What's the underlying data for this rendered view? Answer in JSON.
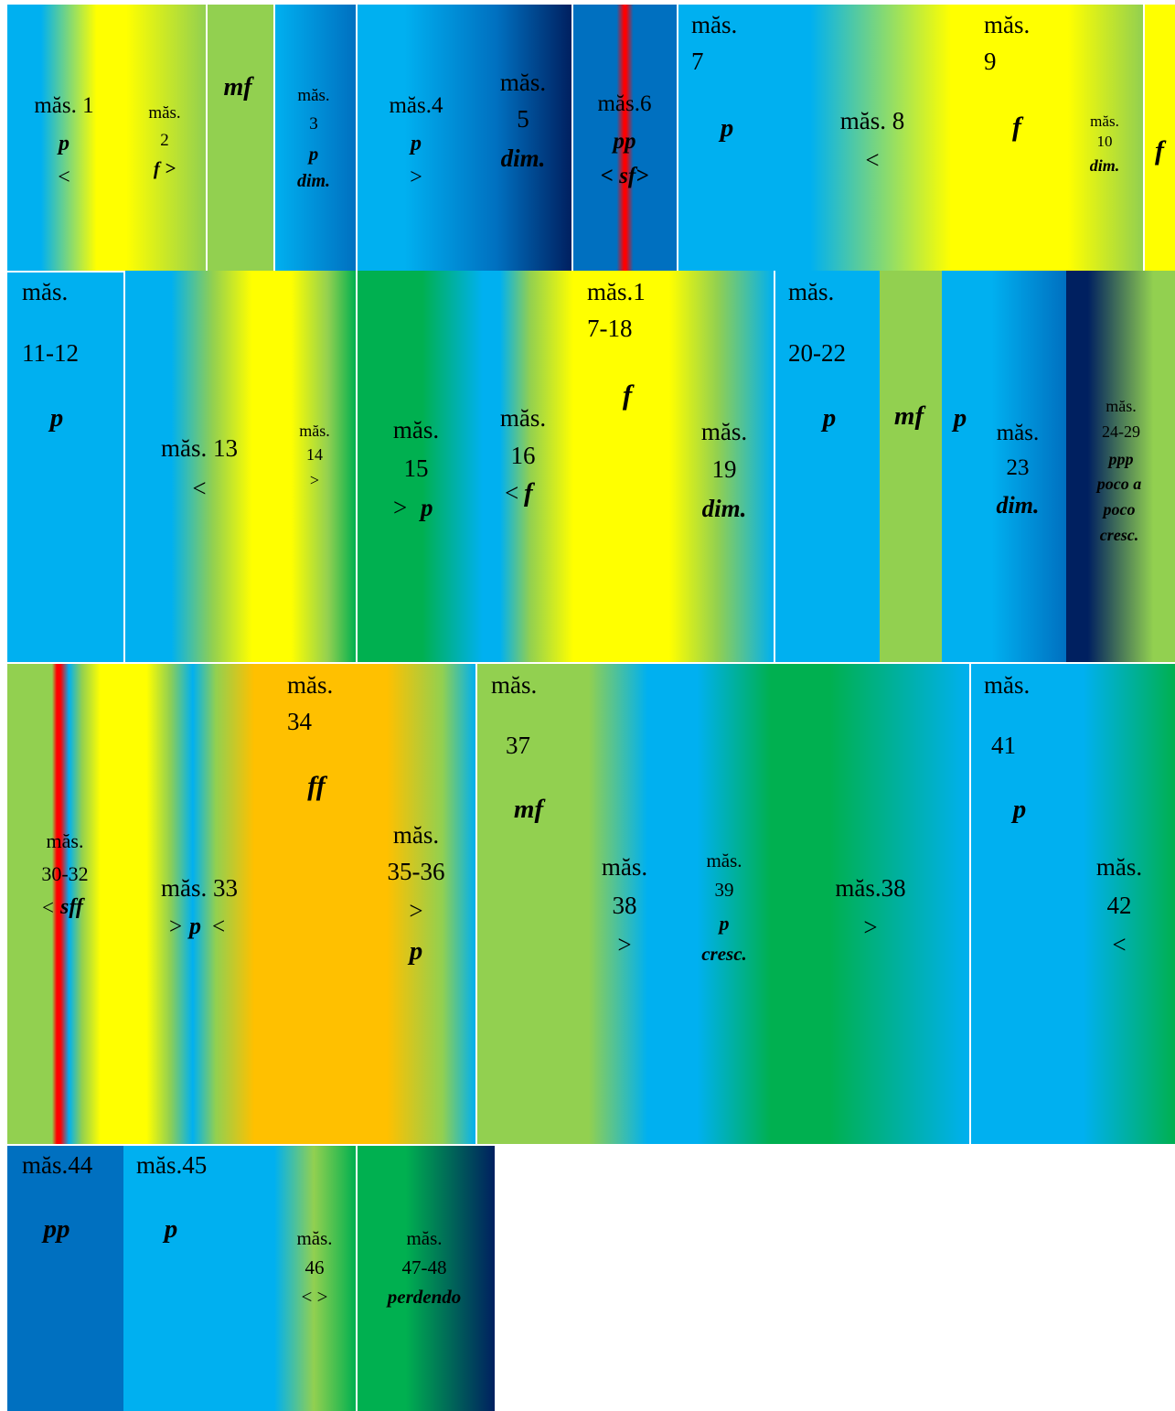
{
  "colors": {
    "sky": "#00b0f0",
    "yellow": "#ffff00",
    "light_green": "#92d050",
    "blue": "#0070c0",
    "dark_navy": "#002060",
    "red": "#ff0000",
    "green": "#00b050",
    "orange": "#ffc000"
  },
  "row1": {
    "m1": {
      "label": "măs. 1",
      "dyn": "p",
      "hair": "<"
    },
    "m2": {
      "label_a": "măs.",
      "label_b": "2",
      "dyn": "f >"
    },
    "mf": {
      "dyn": "mf"
    },
    "m3": {
      "label_a": "măs.",
      "label_b": "3",
      "dyn": "p",
      "dim": "dim."
    },
    "m4": {
      "label": "măs.4",
      "dyn": "p",
      "hair": ">"
    },
    "m5": {
      "label_a": "măs.",
      "label_b": "5",
      "dim": "dim."
    },
    "m6": {
      "label": "măs.6",
      "dyn": "pp",
      "hair": "< sf>"
    },
    "m7": {
      "label_a": "măs.",
      "label_b": "7",
      "dyn": "p"
    },
    "m8": {
      "label": "măs. 8",
      "hair": "<"
    },
    "m9": {
      "label_a": "măs.",
      "label_b": "9",
      "dyn": "f"
    },
    "m10": {
      "label_a": "măs.",
      "label_b": "10",
      "dim": "dim."
    },
    "f_end": {
      "dyn": "f"
    }
  },
  "row2": {
    "m11": {
      "label_a": "măs.",
      "label_b": "11-12",
      "dyn": "p"
    },
    "m13": {
      "label": "măs. 13",
      "hair": "<"
    },
    "m14": {
      "label_a": "măs.",
      "label_b": "14",
      "hair": ">"
    },
    "m15": {
      "label_a": "măs.",
      "label_b": "15",
      "hair": ">",
      "dyn": "p"
    },
    "m16": {
      "label_a": "măs.",
      "label_b": "16",
      "hair": "<",
      "dyn": "f"
    },
    "m17": {
      "label_a": "măs.1",
      "label_b": "7-18",
      "dyn": "f"
    },
    "m19": {
      "label_a": "măs.",
      "label_b": "19",
      "dim": "dim."
    },
    "m20": {
      "label_a": "măs.",
      "label_b": "20-22",
      "dyn": "p"
    },
    "mf": {
      "dyn": "mf"
    },
    "p": {
      "dyn": "p"
    },
    "m23": {
      "label_a": "măs.",
      "label_b": "23",
      "dim": "dim."
    },
    "m24": {
      "label_a": "măs.",
      "label_b": "24-29",
      "dyn": "ppp",
      "text_a": "poco a",
      "text_b": "poco",
      "text_c": "cresc."
    }
  },
  "row3": {
    "m30": {
      "label_a": "măs.",
      "label_b": "30-32",
      "hair": "<",
      "dyn": "sff"
    },
    "m33": {
      "label": "măs. 33",
      "hair_a": ">",
      "dyn": "p",
      "hair_b": "<"
    },
    "m34": {
      "label_a": "măs.",
      "label_b": "34",
      "dyn": "ff"
    },
    "m35": {
      "label_a": "măs.",
      "label_b": "35-36",
      "hair": ">",
      "dyn": "p"
    },
    "m37": {
      "label_a": "măs.",
      "label_b": "37",
      "dyn": "mf"
    },
    "m38": {
      "label_a": "măs.",
      "label_b": "38",
      "hair": ">"
    },
    "m39": {
      "label_a": "măs.",
      "label_b": "39",
      "dyn": "p",
      "text": "cresc."
    },
    "m38b": {
      "label": "măs.38",
      "hair": ">"
    },
    "m41": {
      "label_a": "măs.",
      "label_b": "41",
      "dyn": "p"
    },
    "m42": {
      "label_a": "măs.",
      "label_b": "42",
      "hair": "<"
    }
  },
  "row4": {
    "m44": {
      "label": "măs.44",
      "dyn": "pp"
    },
    "m45": {
      "label": "măs.45",
      "dyn": "p"
    },
    "m46": {
      "label_a": "măs.",
      "label_b": "46",
      "hair": "< >"
    },
    "m47": {
      "label_a": "măs.",
      "label_b": "47-48",
      "text": "perdendo"
    }
  }
}
